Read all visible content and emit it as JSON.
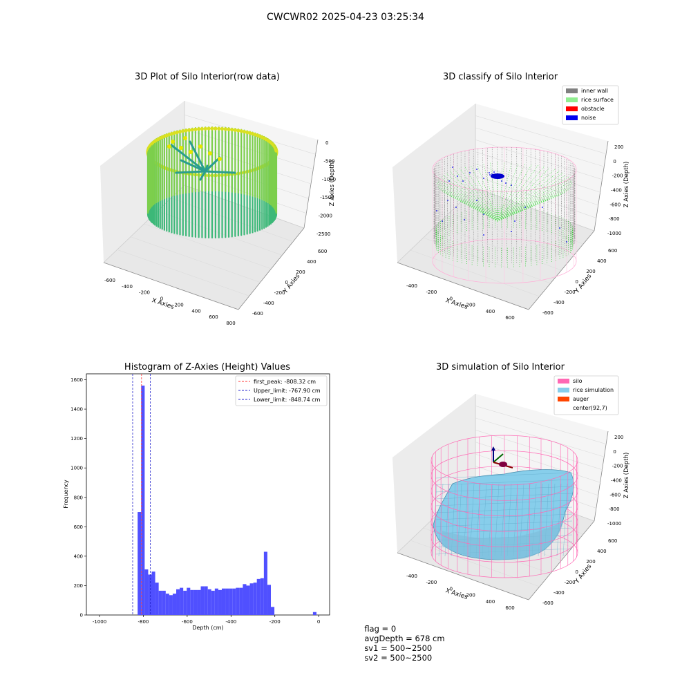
{
  "suptitle": "CWCWR02 2025-04-23 03:25:34",
  "status": {
    "flag": "flag = 0",
    "avg": "avgDepth = 678 cm",
    "sv1": "sv1 = 500~2500",
    "sv2": "sv2 = 500~2500"
  },
  "colors": {
    "hist_bar": "#5050ff",
    "first_peak_line": "#ff3333",
    "limit_line": "#2222cc",
    "inner_wall": "#808080",
    "rice_surface": "#90ee90",
    "obstacle": "#ff0000",
    "noise": "#0000ee",
    "silo": "#ff69b4",
    "rice_simulation": "#87ceeb",
    "auger": "#ff4500"
  },
  "chart_data": [
    {
      "type": "scatter",
      "title": "3D Plot of Silo Interior(row data)",
      "xlabel": "X Axies",
      "ylabel": "Y Axies",
      "zlabel": "Z Axies (Depth)",
      "xticks": [
        "-600",
        "-400",
        "-200",
        "0",
        "200",
        "400",
        "600",
        "800"
      ],
      "yticks": [
        "-600",
        "-400",
        "-200",
        "0",
        "200",
        "400",
        "600"
      ],
      "zticks": [
        "0",
        "-500",
        "-1000",
        "-1500",
        "-2000",
        "-2500"
      ],
      "xlim": [
        -700,
        850
      ],
      "ylim": [
        -700,
        700
      ],
      "zlim": [
        -2600,
        100
      ],
      "colormap": "viridis"
    },
    {
      "type": "scatter",
      "title": "3D classify of Silo Interior",
      "xlabel": "X Axies",
      "ylabel": "Y Axies",
      "zlabel": "Z Axies (Depth)",
      "xticks": [
        "-400",
        "-200",
        "0",
        "200",
        "400",
        "600"
      ],
      "yticks": [
        "-600",
        "-400",
        "-200",
        "0",
        "200",
        "400",
        "600"
      ],
      "zticks": [
        "200",
        "0",
        "-200",
        "-400",
        "-600",
        "-800",
        "-1000"
      ],
      "legend": [
        "inner wall",
        "rice surface",
        "obstacle",
        "noise"
      ],
      "legend_position": "top-right"
    },
    {
      "type": "bar",
      "title": "Histogram of Z-Axies (Height) Values",
      "xlabel": "Depth (cm)",
      "ylabel": "Frequency",
      "xlim": [
        -1060,
        50
      ],
      "ylim": [
        0,
        1640
      ],
      "xticks": [
        -1000,
        -800,
        -600,
        -400,
        -200,
        0
      ],
      "yticks": [
        0,
        200,
        400,
        600,
        800,
        1000,
        1200,
        1400,
        1600
      ],
      "bin_width": 16,
      "bins_start": [
        -826,
        -810,
        -794,
        -778,
        -762,
        -746,
        -730,
        -714,
        -698,
        -682,
        -666,
        -650,
        -634,
        -618,
        -602,
        -586,
        -570,
        -554,
        -538,
        -522,
        -506,
        -490,
        -474,
        -458,
        -442,
        -426,
        -410,
        -394,
        -378,
        -362,
        -346,
        -330,
        -314,
        -298,
        -282,
        -266,
        -250,
        -234,
        -218,
        -202,
        -186,
        -170,
        -154,
        -138,
        -122,
        -106,
        -90,
        -74,
        -58,
        -42,
        -26,
        -10
      ],
      "values": [
        700,
        1560,
        310,
        275,
        295,
        220,
        165,
        165,
        145,
        135,
        145,
        175,
        185,
        165,
        185,
        170,
        170,
        170,
        195,
        195,
        175,
        165,
        180,
        170,
        180,
        180,
        180,
        180,
        185,
        185,
        210,
        200,
        215,
        220,
        245,
        250,
        430,
        205,
        55,
        0,
        0,
        0,
        0,
        0,
        0,
        0,
        0,
        0,
        0,
        0,
        20,
        0
      ],
      "lines": [
        {
          "label": "first_peak: -808.32 cm",
          "x": -808.32,
          "style": "dashed",
          "color": "#ff3333"
        },
        {
          "label": "Upper_limit: -767.90 cm",
          "x": -767.9,
          "style": "dashed",
          "color": "#2222cc"
        },
        {
          "label": "Lower_limit: -848.74 cm",
          "x": -848.74,
          "style": "dashed",
          "color": "#2222cc"
        }
      ],
      "legend_position": "top-right"
    },
    {
      "type": "surface",
      "title": "3D simulation of Silo Interior",
      "xlabel": "X Axies",
      "ylabel": "Y Axies",
      "zlabel": "Z Axies (Depth)",
      "xticks": [
        "-400",
        "-200",
        "0",
        "200",
        "400",
        "600"
      ],
      "yticks": [
        "-600",
        "-400",
        "-200",
        "0",
        "200",
        "400",
        "600"
      ],
      "zticks": [
        "200",
        "0",
        "-200",
        "-400",
        "-600",
        "-800",
        "-1000"
      ],
      "legend": [
        "silo",
        "rice simulation",
        "auger",
        "center(92,7)"
      ],
      "legend_position": "top-right"
    }
  ]
}
